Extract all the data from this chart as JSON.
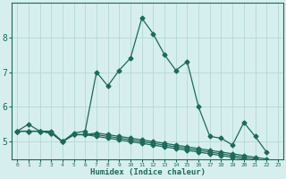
{
  "xlabel": "Humidex (Indice chaleur)",
  "ylabel": "",
  "bg_color": "#d6efee",
  "grid_color": "#b8dbd9",
  "line_color": "#1a6b5a",
  "xlim": [
    -0.5,
    23.5
  ],
  "ylim": [
    4.5,
    9.0
  ],
  "yticks": [
    5,
    6,
    7,
    8
  ],
  "xticks": [
    0,
    1,
    2,
    3,
    4,
    5,
    6,
    7,
    8,
    9,
    10,
    11,
    12,
    13,
    14,
    15,
    16,
    17,
    18,
    19,
    20,
    21,
    22,
    23
  ],
  "series": [
    [
      5.3,
      5.5,
      5.3,
      5.3,
      5.0,
      5.25,
      5.3,
      7.0,
      6.6,
      7.05,
      7.4,
      8.55,
      8.1,
      7.5,
      7.05,
      7.3,
      6.0,
      5.15,
      5.1,
      4.9,
      5.55,
      5.15,
      4.7,
      null
    ],
    [
      5.3,
      5.3,
      5.3,
      5.25,
      5.0,
      5.2,
      5.2,
      5.25,
      5.2,
      5.15,
      5.1,
      5.05,
      5.0,
      4.95,
      4.9,
      4.85,
      4.8,
      4.75,
      4.7,
      4.65,
      4.6,
      4.55,
      4.5,
      null
    ],
    [
      5.3,
      5.3,
      5.3,
      5.25,
      5.0,
      5.2,
      5.2,
      5.2,
      5.15,
      5.1,
      5.05,
      5.0,
      4.95,
      4.9,
      4.85,
      4.8,
      4.75,
      4.7,
      4.65,
      4.6,
      4.55,
      4.5,
      4.45,
      null
    ],
    [
      5.3,
      5.3,
      5.3,
      5.25,
      5.0,
      5.2,
      5.2,
      5.15,
      5.1,
      5.05,
      5.0,
      4.95,
      4.9,
      4.85,
      4.8,
      4.75,
      4.7,
      4.65,
      4.6,
      4.55,
      4.5,
      4.45,
      4.4,
      null
    ]
  ],
  "marker": "D",
  "markersize": 2.5,
  "linewidth": 0.9
}
